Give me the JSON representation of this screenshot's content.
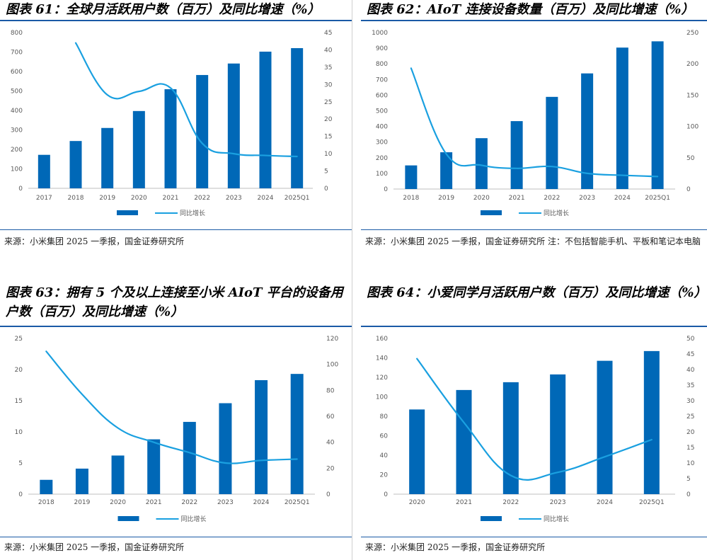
{
  "colors": {
    "bar": "#0068b7",
    "line": "#1aa0e0",
    "rule": "#1a5aa6",
    "axis_text": "#595959"
  },
  "panels": [
    {
      "title": "图表 61：全球月活跃用户数（百万）及同比增速（%）",
      "source": "来源：小米集团 2025 一季报，国金证券研究所",
      "chart_data": {
        "type": "bar+line",
        "categories": [
          "2017",
          "2018",
          "2019",
          "2020",
          "2021",
          "2022",
          "2023",
          "2024",
          "2025Q1"
        ],
        "series": [
          {
            "name": "",
            "kind": "bar",
            "axis": "left",
            "values": [
              172,
              243,
              310,
              397,
              509,
              582,
              641,
              702,
              720
            ]
          },
          {
            "name": "同比增长",
            "kind": "line",
            "axis": "right",
            "values": [
              null,
              42,
              27,
              28,
              29,
              13,
              10,
              9.5,
              9.2
            ]
          }
        ],
        "ylim_left": [
          0,
          800
        ],
        "yticks_left": [
          0,
          100,
          200,
          300,
          400,
          500,
          600,
          700,
          800
        ],
        "ylim_right": [
          0,
          45
        ],
        "yticks_right": [
          0,
          5,
          10,
          15,
          20,
          25,
          30,
          35,
          40,
          45
        ],
        "legend": [
          "",
          "同比增长"
        ],
        "legend_position": "bottom-center"
      }
    },
    {
      "title": "图表 62：AIoT 连接设备数量（百万）及同比增速（%）",
      "source": "来源：小米集团 2025 一季报，国金证券研究所  注：不包括智能手机、平板和笔记本电脑",
      "chart_data": {
        "type": "bar+line",
        "categories": [
          "2018",
          "2019",
          "2020",
          "2021",
          "2022",
          "2023",
          "2024",
          "2025Q1"
        ],
        "series": [
          {
            "name": "",
            "kind": "bar",
            "axis": "left",
            "values": [
              151,
              235,
              325,
              434,
              589,
              739,
              904,
              944
            ]
          },
          {
            "name": "同比增长",
            "kind": "line",
            "axis": "right",
            "values": [
              193,
              56,
              38,
              33,
              36,
              25,
              22,
              20
            ]
          }
        ],
        "ylim_left": [
          0,
          1000
        ],
        "yticks_left": [
          0,
          100,
          200,
          300,
          400,
          500,
          600,
          700,
          800,
          900,
          1000
        ],
        "ylim_right": [
          0,
          250
        ],
        "yticks_right": [
          0,
          50,
          100,
          150,
          200,
          250
        ],
        "legend": [
          "",
          "同比增长"
        ],
        "legend_position": "bottom-center"
      }
    },
    {
      "title": "图表 63：拥有 5 个及以上连接至小米 AIoT 平台的设备用户数（百万）及同比增速（%）",
      "source": "来源：小米集团 2025 一季报，国金证券研究所",
      "chart_data": {
        "type": "bar+line",
        "categories": [
          "2018",
          "2019",
          "2020",
          "2021",
          "2022",
          "2023",
          "2024",
          "2025Q1"
        ],
        "series": [
          {
            "name": "",
            "kind": "bar",
            "axis": "left",
            "values": [
              2.3,
              4.1,
              6.2,
              8.8,
              11.6,
              14.6,
              18.3,
              19.3
            ]
          },
          {
            "name": "同比增长",
            "kind": "line",
            "axis": "right",
            "values": [
              110,
              77,
              51,
              40,
              32,
              24,
              26,
              27
            ]
          }
        ],
        "ylim_left": [
          0,
          25
        ],
        "yticks_left": [
          0,
          5,
          10,
          15,
          20,
          25
        ],
        "ylim_right": [
          0,
          120
        ],
        "yticks_right": [
          0,
          20,
          40,
          60,
          80,
          100,
          120
        ],
        "legend": [
          "",
          "同比增长"
        ],
        "legend_position": "bottom-center"
      }
    },
    {
      "title": "图表 64：小爱同学月活跃用户数（百万）及同比增速（%）",
      "source": "来源：小米集团 2025 一季报，国金证券研究所",
      "chart_data": {
        "type": "bar+line",
        "categories": [
          "2020",
          "2021",
          "2022",
          "2023",
          "2024",
          "2025Q1"
        ],
        "series": [
          {
            "name": "",
            "kind": "bar",
            "axis": "left",
            "values": [
              87,
              107,
              115,
              123,
              137,
              147
            ]
          },
          {
            "name": "同比增长",
            "kind": "line",
            "axis": "right",
            "values": [
              43.5,
              23,
              6,
              7,
              12,
              17.5
            ]
          }
        ],
        "ylim_left": [
          0,
          160
        ],
        "yticks_left": [
          0,
          20,
          40,
          60,
          80,
          100,
          120,
          140,
          160
        ],
        "ylim_right": [
          0,
          50
        ],
        "yticks_right": [
          0,
          5,
          10,
          15,
          20,
          25,
          30,
          35,
          40,
          45,
          50
        ],
        "legend": [
          "",
          "同比增长"
        ],
        "legend_position": "bottom-center"
      }
    }
  ]
}
